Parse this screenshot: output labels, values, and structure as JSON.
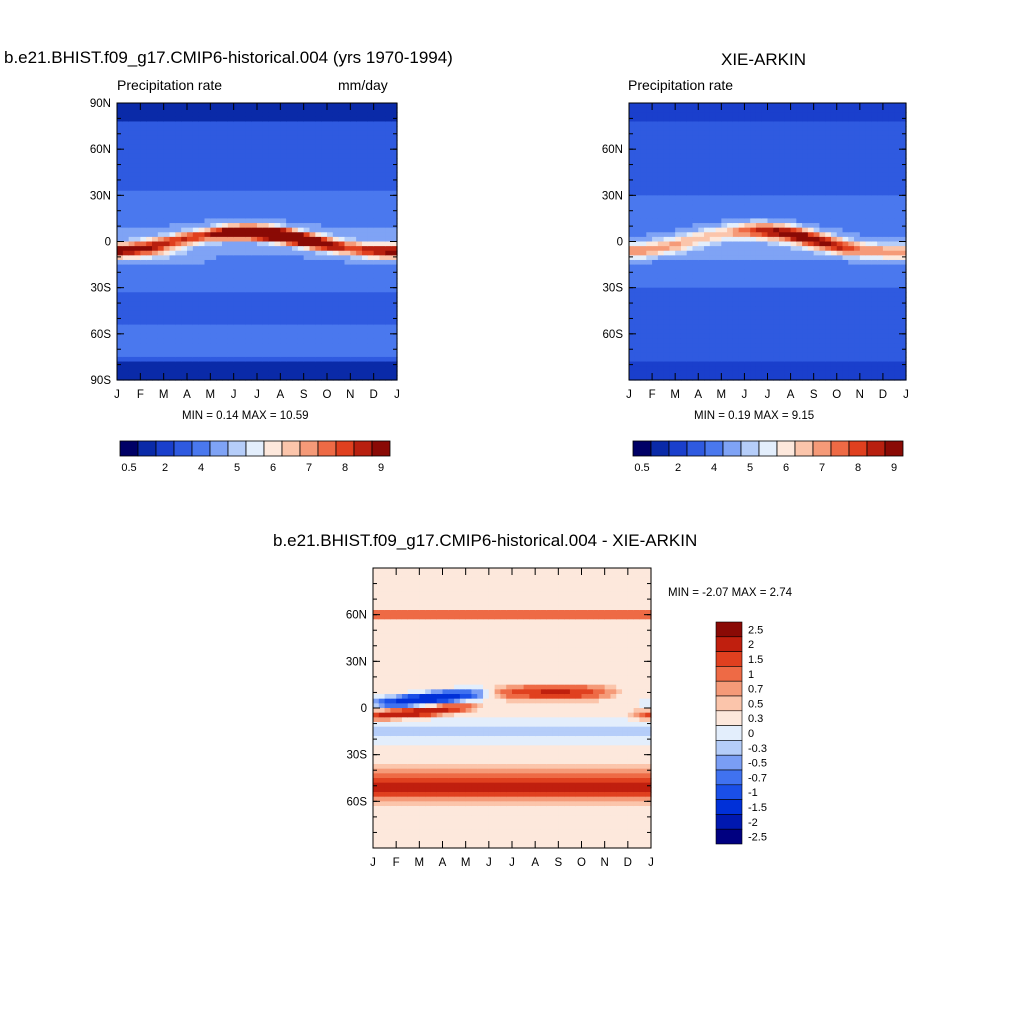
{
  "colors": {
    "precip_scale": [
      "#000066",
      "#0a2aa8",
      "#1a3fcc",
      "#2f5ae0",
      "#4a78ee",
      "#7fa3f5",
      "#b5cdf9",
      "#e3eefc",
      "#fde8dc",
      "#fbc5ab",
      "#f59a78",
      "#ee6a45",
      "#e0401f",
      "#b8200f",
      "#8a0a05"
    ],
    "diff_scale": [
      "#000080",
      "#0018b0",
      "#0030d8",
      "#1a4fe8",
      "#4072f0",
      "#7a9ef5",
      "#b5cdf9",
      "#e3eefc",
      "#fde8dc",
      "#fbc5ab",
      "#f59a78",
      "#ee6a45",
      "#e0401f",
      "#c01f0e",
      "#8a0a05"
    ]
  },
  "panels": {
    "model": {
      "title": "b.e21.BHIST.f09_g17.CMIP6-historical.004 (yrs 1970-1994)",
      "left_label": "Precipitation rate",
      "right_label": "mm/day",
      "stats": "MIN =   0.14 MAX =  10.59"
    },
    "obs": {
      "title": "XIE-ARKIN",
      "left_label": "Precipitation rate",
      "stats": "MIN =   0.19 MAX =   9.15"
    },
    "diff": {
      "title": "b.e21.BHIST.f09_g17.CMIP6-historical.004 - XIE-ARKIN",
      "stats": "MIN =  -2.07 MAX =   2.74"
    }
  },
  "chart_data": [
    {
      "type": "heatmap",
      "title": "b.e21.BHIST.f09_g17.CMIP6-historical.004 (yrs 1970-1994)",
      "x_ticks": [
        "J",
        "F",
        "M",
        "A",
        "M",
        "J",
        "J",
        "A",
        "S",
        "O",
        "N",
        "D",
        "J"
      ],
      "y_ticks": [
        "90N",
        "60N",
        "30N",
        "0",
        "30S",
        "60S",
        "90S"
      ],
      "colorbar_labels": [
        "0.5",
        "2",
        "4",
        "5",
        "6",
        "7",
        "8",
        "9"
      ],
      "min": 0.14,
      "max": 10.59
    },
    {
      "type": "heatmap",
      "title": "XIE-ARKIN",
      "x_ticks": [
        "J",
        "F",
        "M",
        "A",
        "M",
        "J",
        "J",
        "A",
        "S",
        "O",
        "N",
        "D",
        "J"
      ],
      "y_ticks": [
        "60N",
        "30N",
        "0",
        "30S",
        "60S"
      ],
      "colorbar_labels": [
        "0.5",
        "2",
        "4",
        "5",
        "6",
        "7",
        "8",
        "9"
      ],
      "min": 0.19,
      "max": 9.15
    },
    {
      "type": "heatmap",
      "title": "b.e21.BHIST.f09_g17.CMIP6-historical.004 - XIE-ARKIN",
      "x_ticks": [
        "J",
        "F",
        "M",
        "A",
        "M",
        "J",
        "J",
        "A",
        "S",
        "O",
        "N",
        "D",
        "J"
      ],
      "y_ticks": [
        "60N",
        "30N",
        "0",
        "30S",
        "60S"
      ],
      "colorbar_labels": [
        "2.5",
        "2",
        "1.5",
        "1",
        "0.7",
        "0.5",
        "0.3",
        "0",
        "-0.3",
        "-0.5",
        "-0.7",
        "-1",
        "-1.5",
        "-2",
        "-2.5"
      ],
      "min": -2.07,
      "max": 2.74
    }
  ]
}
